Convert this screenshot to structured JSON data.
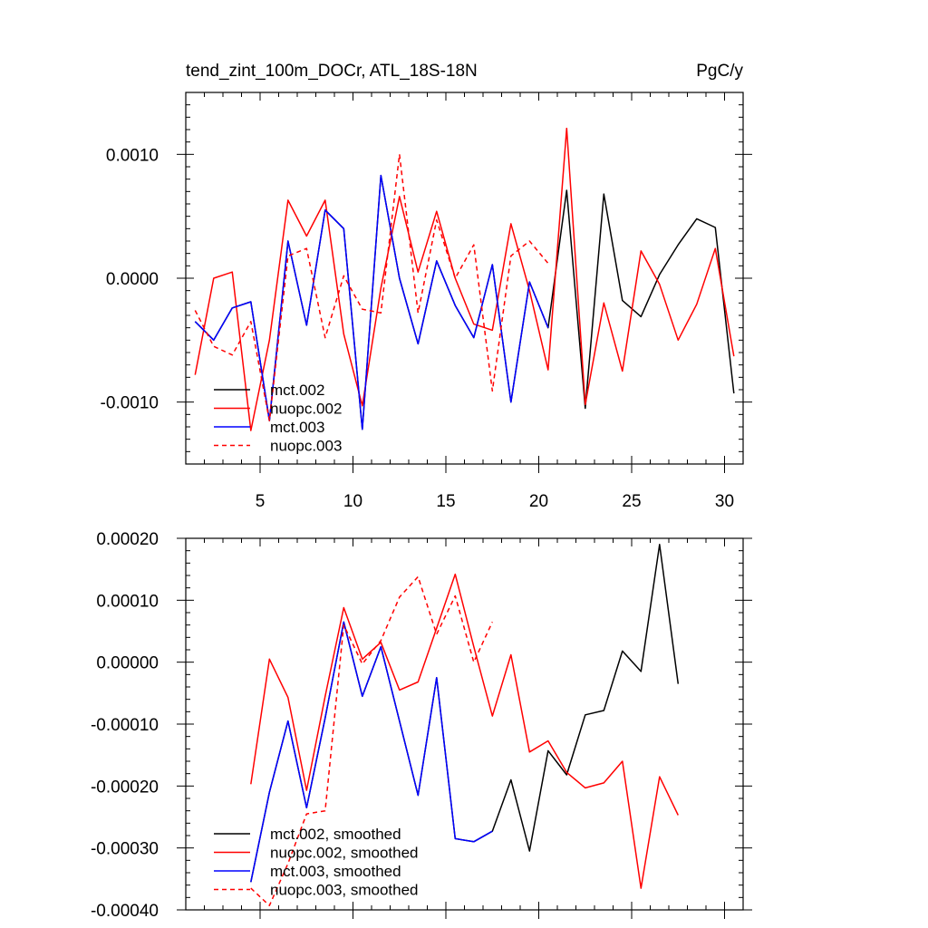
{
  "chart_data": [
    {
      "type": "line",
      "title": "tend_zint_100m_DOCr, ATL_18S-18N",
      "units": "PgC/y",
      "xlim": [
        1,
        31
      ],
      "ylim": [
        -0.0015,
        0.0015
      ],
      "xticks": [
        5,
        10,
        15,
        20,
        25,
        30
      ],
      "xtick_labels": [
        "5",
        "10",
        "15",
        "20",
        "25",
        "30"
      ],
      "yticks": [
        0.001,
        0.0,
        -0.001
      ],
      "ytick_labels": [
        "0.0010",
        "0.0000",
        "-0.0010"
      ],
      "legend_position": "bottom-left",
      "series": [
        {
          "name": "mct.002",
          "color": "#000000",
          "dash": "solid",
          "x": [
            1.5,
            2.5,
            3.5,
            4.5,
            5.5,
            6.5,
            7.5,
            8.5,
            9.5,
            10.5,
            11.5,
            12.5,
            13.5,
            14.5,
            15.5,
            16.5,
            17.5,
            18.5,
            19.5,
            20.5,
            21.5,
            22.5,
            23.5,
            24.5,
            25.5,
            26.5,
            27.5,
            28.5,
            29.5,
            30.5
          ],
          "values": [
            -0.00035,
            -0.0005,
            -0.00024,
            -0.00019,
            -0.00115,
            0.0003,
            -0.00038,
            0.00055,
            0.0004,
            -0.00122,
            0.00083,
            0.0,
            -0.00053,
            0.00014,
            -0.00022,
            -0.00048,
            0.00011,
            -0.001,
            -3e-05,
            -0.0004,
            0.00071,
            -0.00105,
            0.00068,
            -0.00018,
            -0.00031,
            3e-05,
            0.00027,
            0.00048,
            0.00041,
            -0.00093
          ]
        },
        {
          "name": "nuopc.002",
          "color": "#ff0000",
          "dash": "solid",
          "x": [
            1.5,
            2.5,
            3.5,
            4.5,
            5.5,
            6.5,
            7.5,
            8.5,
            9.5,
            10.5,
            11.5,
            12.5,
            13.5,
            14.5,
            15.5,
            16.5,
            17.5,
            18.5,
            19.5,
            20.5,
            21.5,
            22.5,
            23.5,
            24.5,
            25.5,
            26.5,
            27.5,
            28.5,
            29.5,
            30.5
          ],
          "values": [
            -0.00078,
            0.0,
            5e-05,
            -0.00123,
            -0.0005,
            0.00063,
            0.00034,
            0.00063,
            -0.00045,
            -0.00103,
            -8e-05,
            0.00066,
            5e-05,
            0.00054,
            0.0,
            -0.00037,
            -0.00042,
            0.00044,
            -0.0001,
            -0.00074,
            0.00121,
            -0.00102,
            -0.0002,
            -0.00075,
            0.00022,
            -5e-05,
            -0.0005,
            -0.00021,
            0.00024,
            -0.00063
          ]
        },
        {
          "name": "mct.003",
          "color": "#0000ff",
          "dash": "solid",
          "x": [
            1.5,
            2.5,
            3.5,
            4.5,
            5.5,
            6.5,
            7.5,
            8.5,
            9.5,
            10.5,
            11.5,
            12.5,
            13.5,
            14.5,
            15.5,
            16.5,
            17.5,
            18.5,
            19.5,
            20.5
          ],
          "values": [
            -0.00035,
            -0.0005,
            -0.00024,
            -0.00019,
            -0.00115,
            0.0003,
            -0.00038,
            0.00055,
            0.0004,
            -0.00122,
            0.00083,
            0.0,
            -0.00053,
            0.00014,
            -0.00022,
            -0.00048,
            0.00011,
            -0.001,
            -3e-05,
            -0.0004
          ]
        },
        {
          "name": "nuopc.003",
          "color": "#ff0000",
          "dash": "dashed",
          "x": [
            1.5,
            2.5,
            3.5,
            4.5,
            5.5,
            6.5,
            7.5,
            8.5,
            9.5,
            10.5,
            11.5,
            12.5,
            13.5,
            14.5,
            15.5,
            16.5,
            17.5,
            18.5,
            19.5,
            20.5
          ],
          "values": [
            -0.00026,
            -0.00055,
            -0.00062,
            -0.00035,
            -0.00115,
            0.00018,
            0.00024,
            -0.00048,
            2e-05,
            -0.00025,
            -0.00028,
            0.001,
            -0.00028,
            0.00047,
            0.0,
            0.00027,
            -0.00091,
            0.00018,
            0.0003,
            0.00012
          ]
        }
      ]
    },
    {
      "type": "line",
      "xlim": [
        1,
        31
      ],
      "ylim": [
        -0.0004,
        0.0002
      ],
      "xticks": [
        5,
        10,
        15,
        20,
        25,
        30
      ],
      "xtick_labels": [],
      "yticks": [
        0.0002,
        0.0001,
        0.0,
        -0.0001,
        -0.0002,
        -0.0003,
        -0.0004
      ],
      "ytick_labels": [
        "0.00020",
        "0.00010",
        "0.00000",
        "-0.00010",
        "-0.00020",
        "-0.00030",
        "-0.00040"
      ],
      "legend_position": "bottom-left",
      "series": [
        {
          "name": "mct.002, smoothed",
          "color": "#000000",
          "dash": "solid",
          "x": [
            4.5,
            5.5,
            6.5,
            7.5,
            8.5,
            9.5,
            10.5,
            11.5,
            12.5,
            13.5,
            14.5,
            15.5,
            16.5,
            17.5,
            18.5,
            19.5,
            20.5,
            21.5,
            22.5,
            23.5,
            24.5,
            25.5,
            26.5,
            27.5
          ],
          "values": [
            -0.000355,
            -0.00021,
            -9.5e-05,
            -0.000235,
            -9e-05,
            6.5e-05,
            -5.5e-05,
            2.5e-05,
            -9.5e-05,
            -0.000215,
            -2.5e-05,
            -0.000285,
            -0.00029,
            -0.000273,
            -0.00019,
            -0.000305,
            -0.000143,
            -0.000182,
            -8.5e-05,
            -7.8e-05,
            1.8e-05,
            -1.5e-05,
            0.00019,
            -3.5e-05
          ]
        },
        {
          "name": "nuopc.002, smoothed",
          "color": "#ff0000",
          "dash": "solid",
          "x": [
            4.5,
            5.5,
            6.5,
            7.5,
            8.5,
            9.5,
            10.5,
            11.5,
            12.5,
            13.5,
            14.5,
            15.5,
            16.5,
            17.5,
            18.5,
            19.5,
            20.5,
            21.5,
            22.5,
            23.5,
            24.5,
            25.5,
            26.5,
            27.5
          ],
          "values": [
            -0.000197,
            5e-06,
            -5.7e-05,
            -0.000207,
            -5.5e-05,
            8.8e-05,
            5e-06,
            3.2e-05,
            -4.5e-05,
            -3.2e-05,
            5.5e-05,
            0.000142,
            2.5e-05,
            -8.7e-05,
            1.2e-05,
            -0.000145,
            -0.000127,
            -0.000178,
            -0.000203,
            -0.000195,
            -0.00016,
            -0.000365,
            -0.000185,
            -0.000247
          ]
        },
        {
          "name": "mct.003, smoothed",
          "color": "#0000ff",
          "dash": "solid",
          "x": [
            4.5,
            5.5,
            6.5,
            7.5,
            8.5,
            9.5,
            10.5,
            11.5,
            12.5,
            13.5,
            14.5,
            15.5,
            16.5,
            17.5
          ],
          "values": [
            -0.000355,
            -0.00021,
            -9.5e-05,
            -0.000235,
            -9e-05,
            6.5e-05,
            -5.5e-05,
            2.5e-05,
            -9.5e-05,
            -0.000215,
            -2.5e-05,
            -0.000285,
            -0.00029,
            -0.000273
          ]
        },
        {
          "name": "nuopc.003, smoothed",
          "color": "#ff0000",
          "dash": "dashed",
          "x": [
            4.5,
            5.5,
            6.5,
            7.5,
            8.5,
            9.5,
            10.5,
            11.5,
            12.5,
            13.5,
            14.5,
            15.5,
            16.5,
            17.5
          ],
          "values": [
            -0.000365,
            -0.000393,
            -0.000325,
            -0.000245,
            -0.00024,
            6e-05,
            -3e-06,
            3.5e-05,
            0.000105,
            0.000138,
            4.5e-05,
            0.000107,
            0.0,
            6.5e-05
          ]
        }
      ]
    }
  ]
}
